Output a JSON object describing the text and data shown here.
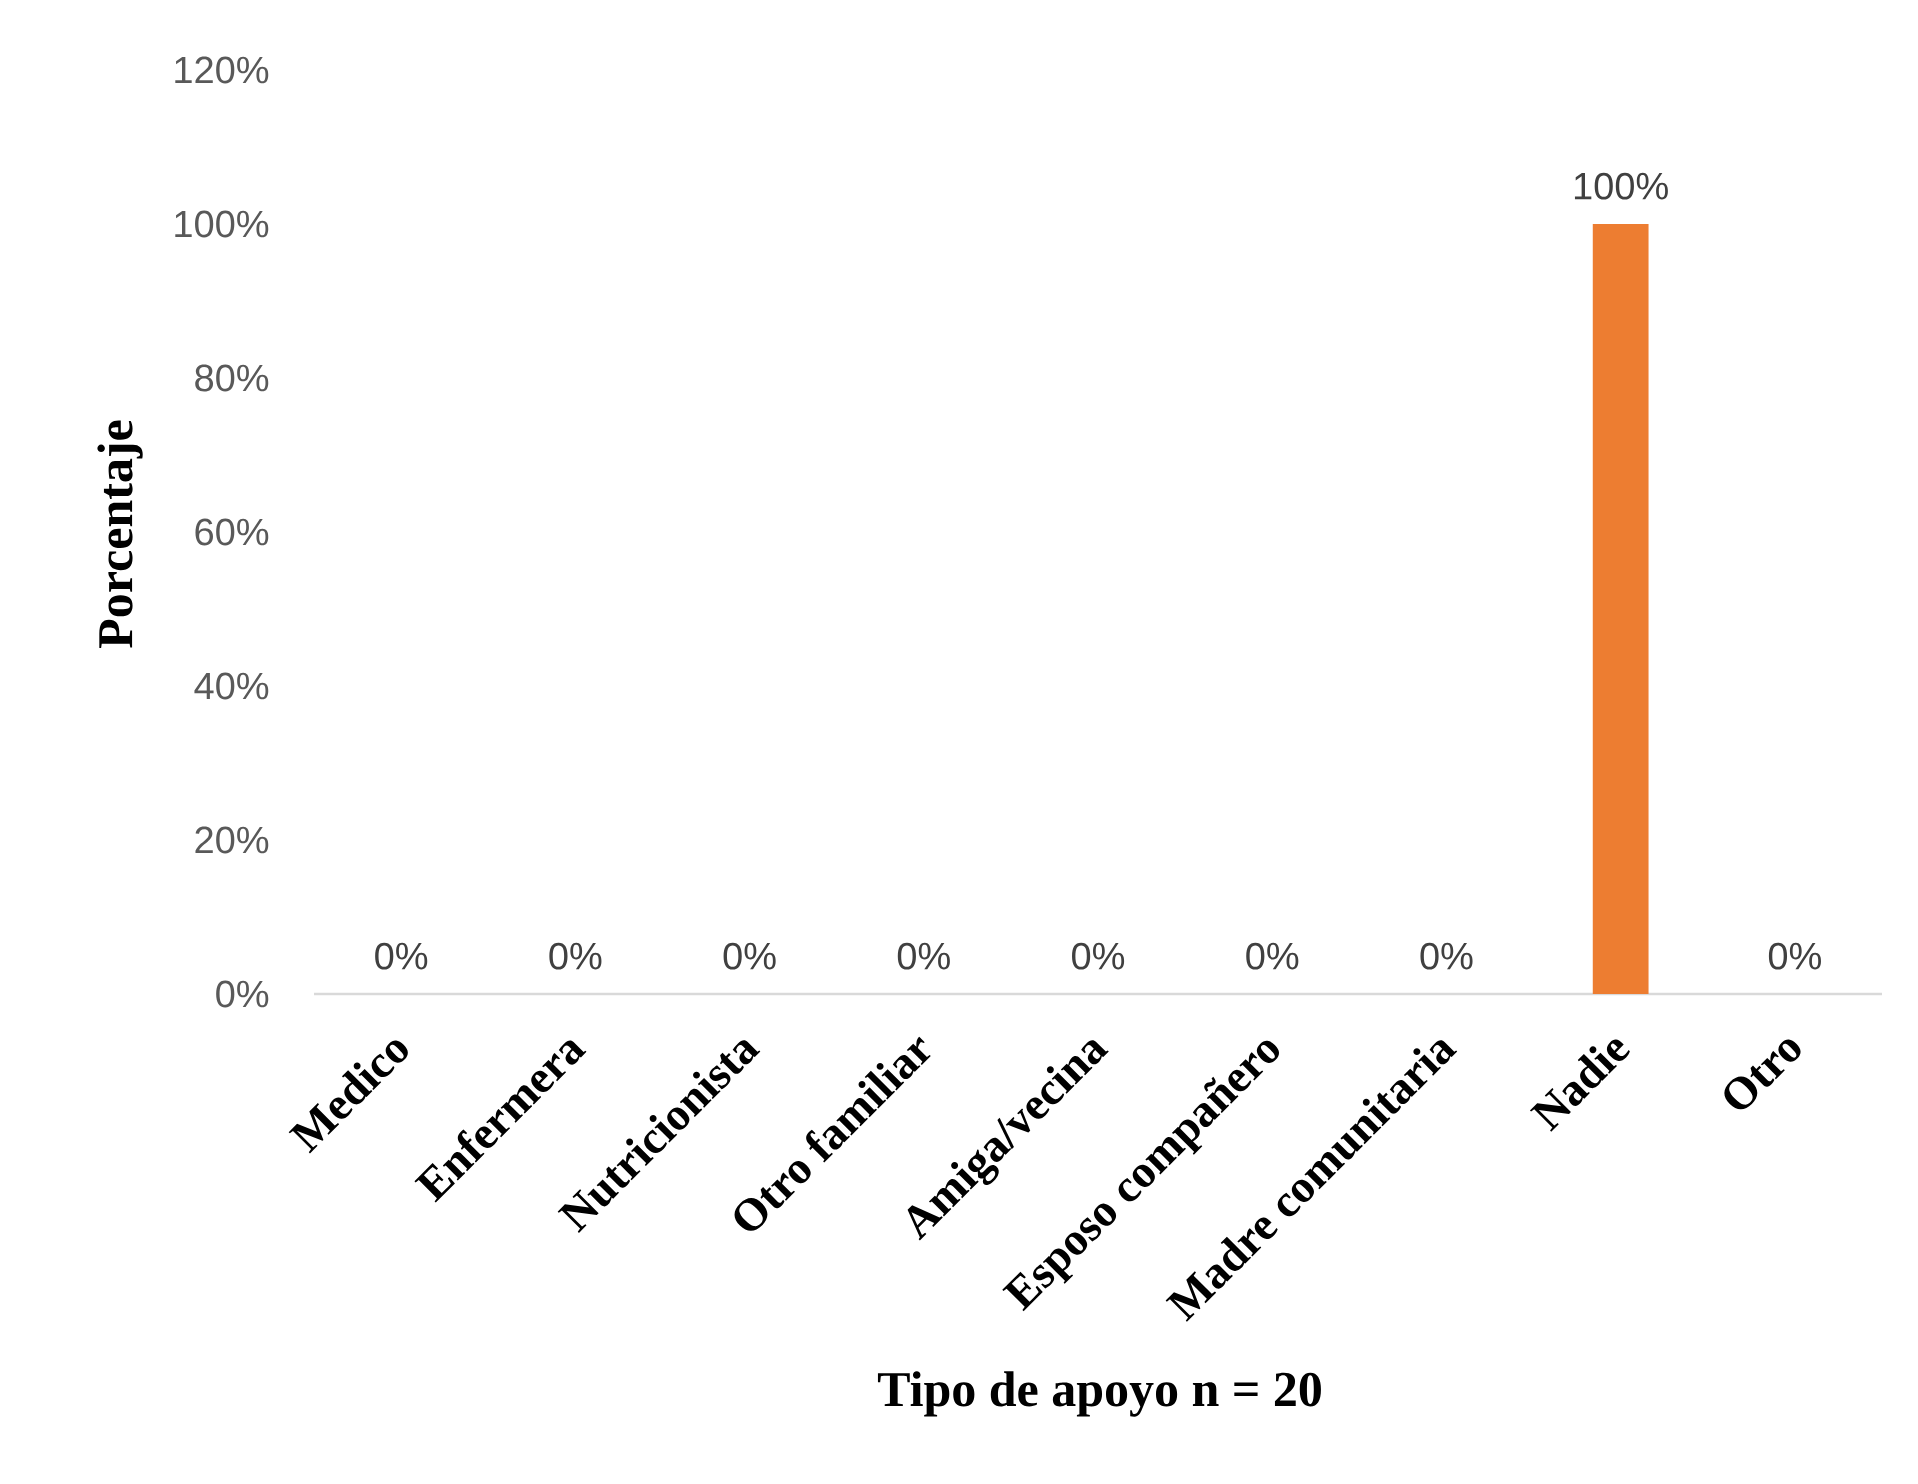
{
  "chart_data": {
    "type": "bar",
    "xlabel": "Tipo de apoyo n = 20",
    "ylabel": "Porcentaje",
    "categories": [
      "Medico",
      "Enfermera",
      "Nutricionista",
      "Otro familiar",
      "Amiga/vecina",
      "Esposo compañero",
      "Madre comunitaria",
      "Nadie",
      "Otro"
    ],
    "values": [
      0,
      0,
      0,
      0,
      0,
      0,
      0,
      100,
      0
    ],
    "value_labels": [
      "0%",
      "0%",
      "0%",
      "0%",
      "0%",
      "0%",
      "0%",
      "100%",
      "0%"
    ],
    "color": "#ed7d31",
    "ylim": [
      0,
      120
    ],
    "yticks": [
      {
        "value": 0,
        "label": "0%"
      },
      {
        "value": 20,
        "label": "20%"
      },
      {
        "value": 40,
        "label": "40%"
      },
      {
        "value": 60,
        "label": "60%"
      },
      {
        "value": 80,
        "label": "80%"
      },
      {
        "value": 100,
        "label": "100%"
      },
      {
        "value": 120,
        "label": "120%"
      }
    ]
  }
}
